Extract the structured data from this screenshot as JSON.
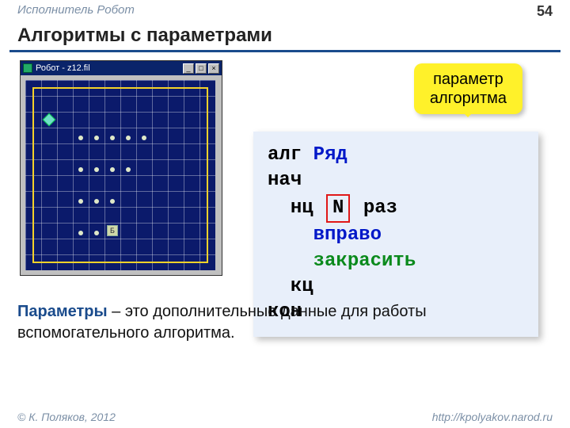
{
  "header": {
    "section": "Исполнитель Робот",
    "page": "54"
  },
  "title": "Алгоритмы с параметрами",
  "robot": {
    "window_title": "Робот - z12.fil",
    "buttons": {
      "min": "_",
      "max": "□",
      "close": "×"
    },
    "base_label": "Б",
    "grid_cells": 12,
    "diamond": {
      "col": 1,
      "row": 2
    },
    "dot_rows": [
      {
        "row": 3,
        "start": 3,
        "count": 5
      },
      {
        "row": 5,
        "start": 3,
        "count": 4
      },
      {
        "row": 7,
        "start": 3,
        "count": 3
      },
      {
        "row": 9,
        "start": 3,
        "count": 2
      }
    ],
    "base": {
      "col": 5,
      "row": 9
    },
    "colors": {
      "bg": "#0b1a6b",
      "border": "#f4d22a",
      "diamond": "#6fe0c8",
      "dot": "#dfe8c8"
    }
  },
  "callout": {
    "line1": "параметр",
    "line2": "алгоритма"
  },
  "code": {
    "l1_kw": "алг",
    "l1_name": "Ряд",
    "l2": "нач",
    "l3_before": "нц",
    "l3_N": "N",
    "l3_after": "раз",
    "l4": "вправо",
    "l5": "закрасить",
    "l6": "кц",
    "l7": "кон"
  },
  "body": {
    "term": "Параметры",
    "rest": " – это дополнительные данные для работы вспомогательного алгоритма."
  },
  "footer": {
    "left": "© К. Поляков, 2012",
    "right": "http://kpolyakov.narod.ru"
  }
}
